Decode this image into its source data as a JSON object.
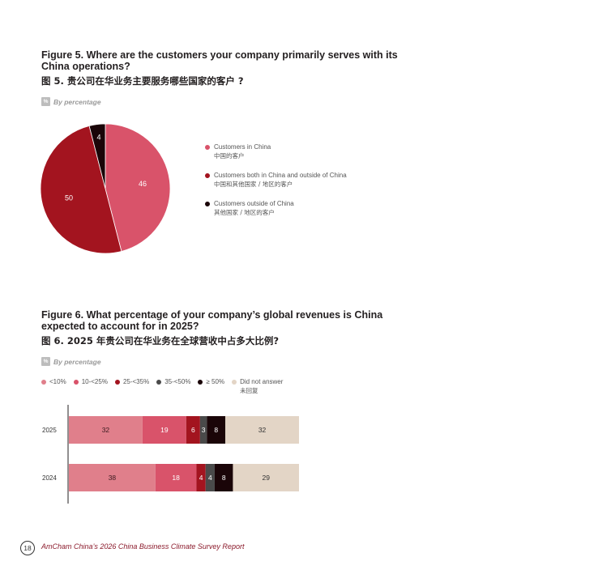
{
  "figure5": {
    "title": "Figure 5. Where are the customers your company primarily serves with its China operations?",
    "title_cn": "图 5. 贵公司在华业务主要服务哪些国家的客户 ?",
    "by_percentage": "By percentage",
    "pct_icon": "%"
  },
  "figure6": {
    "title": "Figure 6. What percentage of your company’s global revenues is China expected to account for in 2025?",
    "title_cn": "图 6. 2025 年贵公司在华业务在全球营收中占多大比例?",
    "by_percentage": "By percentage",
    "pct_icon": "%"
  },
  "chart_data": [
    {
      "type": "pie",
      "title": "Figure 5. Where are the customers your company primarily serves with its China operations?",
      "slices": [
        {
          "label": "Customers in China",
          "label_cn": "中国的客户",
          "value": 46,
          "color": "#d9536a"
        },
        {
          "label": "Customers both in China and outside of China",
          "label_cn": "中国和其他国家 / 地区的客户",
          "value": 50,
          "color": "#a3141f"
        },
        {
          "label": "Customers outside of China",
          "label_cn": "其他国家 / 地区的客户",
          "value": 4,
          "color": "#1a0508"
        }
      ],
      "legend_position": "right"
    },
    {
      "type": "bar",
      "orientation": "horizontal",
      "stacked": true,
      "title": "Figure 6. What percentage of your company’s global revenues is China expected to account for in 2025?",
      "categories": [
        "2025",
        "2024"
      ],
      "series": [
        {
          "name": "<10%",
          "values": [
            32,
            38
          ],
          "color": "#e07f8b",
          "label_color": "#3a1a1f"
        },
        {
          "name": "10-<25%",
          "values": [
            19,
            18
          ],
          "color": "#d9536a",
          "label_color": "#ffffff"
        },
        {
          "name": "25-<35%",
          "values": [
            6,
            4
          ],
          "color": "#a3141f",
          "label_color": "#ffffff"
        },
        {
          "name": "35-<50%",
          "values": [
            3,
            4
          ],
          "color": "#4a4a4a",
          "label_color": "#ffffff"
        },
        {
          "name": "≥ 50%",
          "values": [
            8,
            8
          ],
          "color": "#1a0508",
          "label_color": "#ffffff"
        },
        {
          "name": "Did not answer",
          "name_cn": "未回复",
          "values": [
            32,
            29
          ],
          "color": "#e3d5c6",
          "label_color": "#333333"
        }
      ],
      "legend_position": "top"
    }
  ],
  "footer": {
    "page_number": "18",
    "text": "AmCham China’s 2026 China Business Climate Survey Report"
  }
}
